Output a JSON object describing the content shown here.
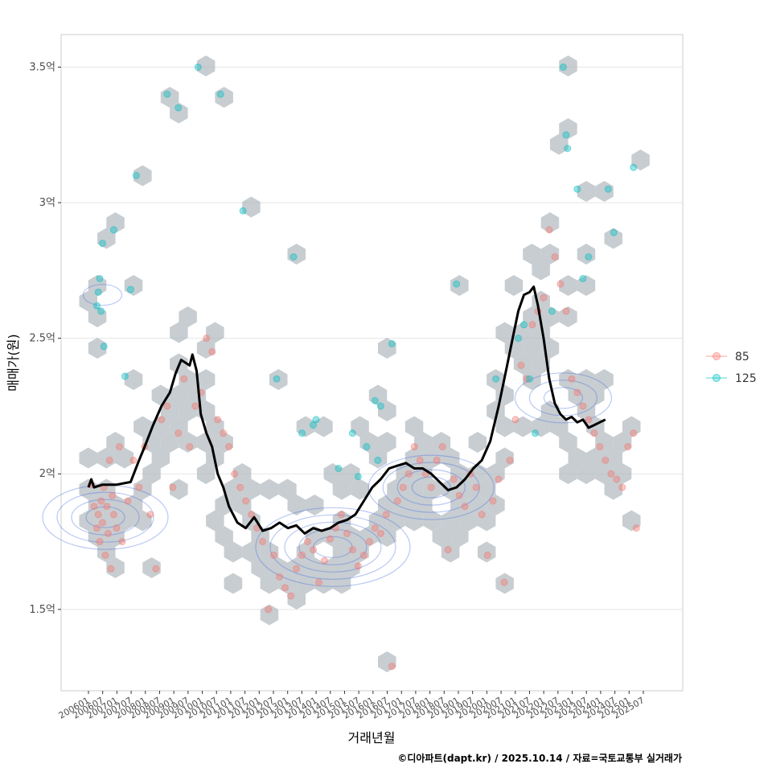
{
  "chart_data": {
    "type": "scatter",
    "title": "",
    "xlabel": "거래년월",
    "ylabel": "매매가(원)",
    "ylim": [
      1.2,
      3.62
    ],
    "y_ticks": [
      {
        "value": 1.5,
        "label": "1.5억"
      },
      {
        "value": 2.0,
        "label": "2억"
      },
      {
        "value": 2.5,
        "label": "2.5억"
      },
      {
        "value": 3.0,
        "label": "3억"
      },
      {
        "value": 3.5,
        "label": "3.5억"
      }
    ],
    "x_start": 2006.0,
    "x_end": 2025.75,
    "xlim": [
      2006.0,
      2025.75
    ],
    "x_tick_labels": [
      "200601",
      "200607",
      "200701",
      "200707",
      "200801",
      "200807",
      "200901",
      "200907",
      "201001",
      "201007",
      "201101",
      "201107",
      "201201",
      "201207",
      "201301",
      "201307",
      "201401",
      "201407",
      "201501",
      "201507",
      "201601",
      "201607",
      "201701",
      "201707",
      "201801",
      "201807",
      "201901",
      "201907",
      "202001",
      "202007",
      "202101",
      "202107",
      "202201",
      "202207",
      "202301",
      "202307",
      "202401",
      "202407",
      "202501",
      "202507"
    ],
    "legend": [
      {
        "label": "85",
        "color": "#F8766D"
      },
      {
        "label": "125",
        "color": "#00BFC4"
      }
    ],
    "colors": {
      "area85": "#F8766D",
      "area125": "#00BFC4",
      "hex": "#A9B2B8",
      "contour": "#3B64E0",
      "trend": "#000000",
      "grid": "#e6e6e6"
    },
    "series": [
      {
        "name": "85",
        "points": [
          [
            2006.1,
            1.96
          ],
          [
            2006.2,
            1.88
          ],
          [
            2006.3,
            1.8
          ],
          [
            2006.35,
            1.85
          ],
          [
            2006.4,
            1.75
          ],
          [
            2006.45,
            1.9
          ],
          [
            2006.5,
            1.82
          ],
          [
            2006.55,
            1.95
          ],
          [
            2006.6,
            1.7
          ],
          [
            2006.65,
            1.88
          ],
          [
            2006.7,
            1.78
          ],
          [
            2006.75,
            2.05
          ],
          [
            2006.8,
            1.65
          ],
          [
            2006.85,
            1.92
          ],
          [
            2006.9,
            1.85
          ],
          [
            2007.0,
            1.8
          ],
          [
            2007.1,
            2.1
          ],
          [
            2007.2,
            1.75
          ],
          [
            2007.4,
            1.9
          ],
          [
            2007.6,
            2.05
          ],
          [
            2007.8,
            1.95
          ],
          [
            2008.0,
            2.1
          ],
          [
            2008.2,
            1.85
          ],
          [
            2008.4,
            1.65
          ],
          [
            2008.6,
            2.2
          ],
          [
            2008.8,
            2.25
          ],
          [
            2009.0,
            1.95
          ],
          [
            2009.2,
            2.15
          ],
          [
            2009.4,
            2.35
          ],
          [
            2009.6,
            2.1
          ],
          [
            2009.8,
            2.25
          ],
          [
            2010.0,
            2.3
          ],
          [
            2010.2,
            2.5
          ],
          [
            2010.4,
            2.45
          ],
          [
            2010.6,
            2.2
          ],
          [
            2010.8,
            2.15
          ],
          [
            2011.0,
            2.1
          ],
          [
            2011.2,
            2.0
          ],
          [
            2011.4,
            1.95
          ],
          [
            2011.6,
            1.9
          ],
          [
            2011.8,
            1.85
          ],
          [
            2012.0,
            1.8
          ],
          [
            2012.2,
            1.75
          ],
          [
            2012.4,
            1.5
          ],
          [
            2012.6,
            1.7
          ],
          [
            2012.8,
            1.62
          ],
          [
            2013.0,
            1.58
          ],
          [
            2013.2,
            1.55
          ],
          [
            2013.4,
            1.65
          ],
          [
            2013.6,
            1.7
          ],
          [
            2013.8,
            1.75
          ],
          [
            2014.0,
            1.72
          ],
          [
            2014.2,
            1.6
          ],
          [
            2014.4,
            1.68
          ],
          [
            2014.6,
            1.76
          ],
          [
            2014.8,
            1.8
          ],
          [
            2015.0,
            1.85
          ],
          [
            2015.2,
            1.78
          ],
          [
            2015.4,
            1.72
          ],
          [
            2015.6,
            1.66
          ],
          [
            2015.8,
            1.7
          ],
          [
            2016.0,
            1.75
          ],
          [
            2016.2,
            1.8
          ],
          [
            2016.4,
            1.78
          ],
          [
            2016.6,
            1.85
          ],
          [
            2016.8,
            1.29
          ],
          [
            2017.0,
            1.9
          ],
          [
            2017.2,
            1.95
          ],
          [
            2017.4,
            2.0
          ],
          [
            2017.6,
            2.1
          ],
          [
            2017.8,
            2.05
          ],
          [
            2018.0,
            2.0
          ],
          [
            2018.2,
            1.95
          ],
          [
            2018.4,
            2.05
          ],
          [
            2018.6,
            2.1
          ],
          [
            2018.8,
            1.72
          ],
          [
            2019.0,
            1.98
          ],
          [
            2019.2,
            1.92
          ],
          [
            2019.4,
            1.88
          ],
          [
            2019.6,
            2.0
          ],
          [
            2019.8,
            1.95
          ],
          [
            2020.0,
            1.85
          ],
          [
            2020.2,
            1.7
          ],
          [
            2020.4,
            1.9
          ],
          [
            2020.6,
            1.98
          ],
          [
            2020.8,
            1.6
          ],
          [
            2021.0,
            2.05
          ],
          [
            2021.2,
            2.2
          ],
          [
            2021.4,
            2.4
          ],
          [
            2021.6,
            2.35
          ],
          [
            2021.8,
            2.55
          ],
          [
            2022.0,
            2.6
          ],
          [
            2022.2,
            2.65
          ],
          [
            2022.4,
            2.9
          ],
          [
            2022.6,
            2.8
          ],
          [
            2022.8,
            2.7
          ],
          [
            2023.0,
            2.6
          ],
          [
            2023.2,
            2.35
          ],
          [
            2023.4,
            2.3
          ],
          [
            2023.6,
            2.25
          ],
          [
            2023.8,
            2.2
          ],
          [
            2024.0,
            2.15
          ],
          [
            2024.2,
            2.1
          ],
          [
            2024.4,
            2.05
          ],
          [
            2024.6,
            2.0
          ],
          [
            2024.8,
            1.98
          ],
          [
            2025.0,
            1.95
          ],
          [
            2025.2,
            2.1
          ],
          [
            2025.4,
            2.15
          ],
          [
            2025.5,
            1.8
          ]
        ]
      },
      {
        "name": "125",
        "points": [
          [
            2006.3,
            2.62
          ],
          [
            2006.35,
            2.67
          ],
          [
            2006.4,
            2.72
          ],
          [
            2006.45,
            2.6
          ],
          [
            2006.5,
            2.85
          ],
          [
            2006.55,
            2.47
          ],
          [
            2006.9,
            2.9
          ],
          [
            2007.3,
            2.36
          ],
          [
            2007.5,
            2.68
          ],
          [
            2007.7,
            3.1
          ],
          [
            2008.8,
            3.4
          ],
          [
            2009.2,
            3.35
          ],
          [
            2009.9,
            3.5
          ],
          [
            2010.7,
            3.4
          ],
          [
            2011.5,
            2.97
          ],
          [
            2012.7,
            2.35
          ],
          [
            2013.3,
            2.8
          ],
          [
            2013.6,
            2.15
          ],
          [
            2014.1,
            2.2
          ],
          [
            2014.0,
            2.18
          ],
          [
            2014.9,
            2.02
          ],
          [
            2015.4,
            2.15
          ],
          [
            2015.6,
            1.99
          ],
          [
            2015.9,
            2.1
          ],
          [
            2016.2,
            2.27
          ],
          [
            2016.4,
            2.25
          ],
          [
            2016.8,
            2.48
          ],
          [
            2016.3,
            2.05
          ],
          [
            2019.1,
            2.7
          ],
          [
            2020.5,
            2.35
          ],
          [
            2021.3,
            2.5
          ],
          [
            2021.5,
            2.55
          ],
          [
            2021.7,
            2.35
          ],
          [
            2021.9,
            2.15
          ],
          [
            2022.5,
            2.6
          ],
          [
            2022.9,
            3.5
          ],
          [
            2023.0,
            3.25
          ],
          [
            2023.05,
            3.2
          ],
          [
            2023.4,
            3.05
          ],
          [
            2023.6,
            2.72
          ],
          [
            2023.8,
            2.8
          ],
          [
            2024.5,
            3.05
          ],
          [
            2024.7,
            2.89
          ],
          [
            2025.4,
            3.13
          ]
        ]
      }
    ],
    "trend": {
      "name": "moving average",
      "points": [
        [
          2006.0,
          1.95
        ],
        [
          2006.1,
          1.98
        ],
        [
          2006.2,
          1.95
        ],
        [
          2006.5,
          1.96
        ],
        [
          2007.0,
          1.96
        ],
        [
          2007.5,
          1.97
        ],
        [
          2007.8,
          2.05
        ],
        [
          2008.0,
          2.1
        ],
        [
          2008.3,
          2.18
        ],
        [
          2008.6,
          2.25
        ],
        [
          2008.9,
          2.3
        ],
        [
          2009.1,
          2.37
        ],
        [
          2009.3,
          2.42
        ],
        [
          2009.6,
          2.4
        ],
        [
          2009.7,
          2.44
        ],
        [
          2009.85,
          2.38
        ],
        [
          2010.0,
          2.22
        ],
        [
          2010.2,
          2.15
        ],
        [
          2010.4,
          2.1
        ],
        [
          2010.6,
          2.0
        ],
        [
          2010.8,
          1.95
        ],
        [
          2011.0,
          1.88
        ],
        [
          2011.3,
          1.82
        ],
        [
          2011.6,
          1.8
        ],
        [
          2011.9,
          1.84
        ],
        [
          2012.2,
          1.79
        ],
        [
          2012.5,
          1.8
        ],
        [
          2012.8,
          1.82
        ],
        [
          2013.1,
          1.8
        ],
        [
          2013.4,
          1.81
        ],
        [
          2013.7,
          1.78
        ],
        [
          2014.0,
          1.8
        ],
        [
          2014.3,
          1.79
        ],
        [
          2014.6,
          1.8
        ],
        [
          2014.9,
          1.82
        ],
        [
          2015.2,
          1.83
        ],
        [
          2015.5,
          1.85
        ],
        [
          2015.8,
          1.9
        ],
        [
          2016.1,
          1.95
        ],
        [
          2016.4,
          1.98
        ],
        [
          2016.7,
          2.02
        ],
        [
          2017.0,
          2.03
        ],
        [
          2017.3,
          2.04
        ],
        [
          2017.6,
          2.02
        ],
        [
          2017.9,
          2.02
        ],
        [
          2018.2,
          2.0
        ],
        [
          2018.5,
          1.97
        ],
        [
          2018.8,
          1.94
        ],
        [
          2019.1,
          1.95
        ],
        [
          2019.4,
          1.98
        ],
        [
          2019.7,
          2.02
        ],
        [
          2020.0,
          2.05
        ],
        [
          2020.3,
          2.12
        ],
        [
          2020.6,
          2.25
        ],
        [
          2020.9,
          2.4
        ],
        [
          2021.1,
          2.5
        ],
        [
          2021.3,
          2.6
        ],
        [
          2021.5,
          2.66
        ],
        [
          2021.7,
          2.67
        ],
        [
          2021.85,
          2.69
        ],
        [
          2022.0,
          2.62
        ],
        [
          2022.2,
          2.5
        ],
        [
          2022.4,
          2.35
        ],
        [
          2022.6,
          2.26
        ],
        [
          2022.8,
          2.22
        ],
        [
          2023.0,
          2.2
        ],
        [
          2023.2,
          2.21
        ],
        [
          2023.4,
          2.19
        ],
        [
          2023.6,
          2.2
        ],
        [
          2023.8,
          2.17
        ],
        [
          2024.0,
          2.18
        ],
        [
          2024.2,
          2.19
        ],
        [
          2024.4,
          2.2
        ]
      ]
    }
  },
  "caption": "©디아파트(dapt.kr) / 2025.10.14 / 자료=국토교통부 실거래가"
}
